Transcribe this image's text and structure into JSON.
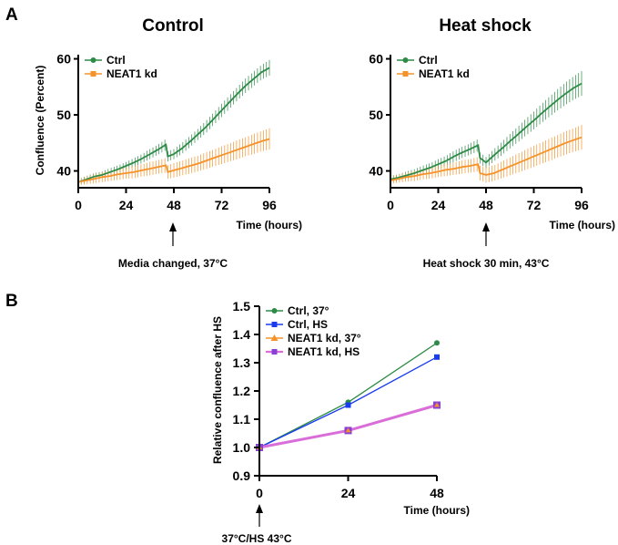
{
  "panels": {
    "a_label": "A",
    "b_label": "B"
  },
  "colors": {
    "ctrl": "#2e8b47",
    "neat1": "#f5922a",
    "ctrl_hs": "#1a3cf0",
    "neat1_hs": "#d96ed9",
    "neat1_hs_marker": "#8a3fd6",
    "axis": "#000000"
  },
  "chart_data": [
    {
      "type": "line",
      "title": "Control",
      "xlabel": "Time (hours)",
      "ylabel": "Confluence (Percent)",
      "xlim": [
        0,
        96
      ],
      "ylim": [
        37,
        60
      ],
      "xticks": [
        "0",
        "24",
        "48",
        "72",
        "96"
      ],
      "yticks": [
        "40",
        "50",
        "60"
      ],
      "legend_position": "top-left",
      "annotation": {
        "text": "Media changed, 37°C",
        "x": 48
      },
      "error_bars": true,
      "series": [
        {
          "name": "Ctrl",
          "x": [
            0,
            4,
            8,
            12,
            16,
            20,
            24,
            28,
            32,
            36,
            40,
            44,
            45,
            48,
            52,
            56,
            60,
            64,
            68,
            72,
            76,
            80,
            84,
            88,
            92,
            96
          ],
          "y": [
            38.0,
            38.5,
            39.0,
            39.3,
            39.8,
            40.3,
            40.9,
            41.5,
            42.2,
            43.0,
            43.8,
            44.7,
            42.6,
            43.0,
            44.0,
            45.2,
            46.5,
            47.8,
            49.3,
            50.8,
            52.3,
            53.8,
            55.2,
            56.4,
            57.6,
            58.4
          ],
          "err": [
            0.5,
            0.6,
            0.6,
            0.6,
            0.7,
            0.7,
            0.7,
            0.8,
            0.8,
            0.9,
            0.9,
            1.0,
            0.9,
            0.9,
            1.0,
            1.0,
            1.0,
            1.1,
            1.1,
            1.2,
            1.2,
            1.2,
            1.3,
            1.3,
            1.3,
            1.4
          ]
        },
        {
          "name": "NEAT1 kd",
          "x": [
            0,
            4,
            8,
            12,
            16,
            20,
            24,
            28,
            32,
            36,
            40,
            44,
            45,
            48,
            52,
            56,
            60,
            64,
            68,
            72,
            76,
            80,
            84,
            88,
            92,
            96
          ],
          "y": [
            38.0,
            38.3,
            38.6,
            38.9,
            39.1,
            39.4,
            39.6,
            39.8,
            40.1,
            40.4,
            40.7,
            41.0,
            39.8,
            40.1,
            40.5,
            40.9,
            41.3,
            41.8,
            42.3,
            42.8,
            43.3,
            43.8,
            44.3,
            44.8,
            45.3,
            45.7
          ],
          "err": [
            0.6,
            0.7,
            0.8,
            0.9,
            0.9,
            1.0,
            1.0,
            1.1,
            1.1,
            1.2,
            1.2,
            1.3,
            1.2,
            1.3,
            1.3,
            1.4,
            1.4,
            1.5,
            1.5,
            1.6,
            1.6,
            1.7,
            1.7,
            1.8,
            1.8,
            1.9
          ]
        }
      ]
    },
    {
      "type": "line",
      "title": "Heat shock",
      "xlabel": "Time (hours)",
      "ylabel": "",
      "xlim": [
        0,
        96
      ],
      "ylim": [
        37,
        60
      ],
      "xticks": [
        "0",
        "24",
        "48",
        "72",
        "96"
      ],
      "yticks": [
        "40",
        "50",
        "60"
      ],
      "legend_position": "top-left",
      "annotation": {
        "text": "Heat shock 30 min, 43°C",
        "x": 48
      },
      "error_bars": true,
      "series": [
        {
          "name": "Ctrl",
          "x": [
            0,
            4,
            8,
            12,
            16,
            20,
            24,
            28,
            32,
            36,
            40,
            44,
            45,
            48,
            52,
            56,
            60,
            64,
            68,
            72,
            76,
            80,
            84,
            88,
            92,
            96
          ],
          "y": [
            38.5,
            38.8,
            39.2,
            39.6,
            40.1,
            40.6,
            41.2,
            41.8,
            42.6,
            43.3,
            43.9,
            44.6,
            42.3,
            41.5,
            42.8,
            44.0,
            45.3,
            46.5,
            47.8,
            49.0,
            50.3,
            51.5,
            52.7,
            53.8,
            54.8,
            55.6
          ],
          "err": [
            0.6,
            0.6,
            0.7,
            0.7,
            0.8,
            0.8,
            0.9,
            0.9,
            1.0,
            1.0,
            1.0,
            1.1,
            1.0,
            1.0,
            1.1,
            1.2,
            1.3,
            1.4,
            1.5,
            1.6,
            1.7,
            1.8,
            1.9,
            2.0,
            2.1,
            2.2
          ]
        },
        {
          "name": "NEAT1 kd",
          "x": [
            0,
            4,
            8,
            12,
            16,
            20,
            24,
            28,
            32,
            36,
            40,
            44,
            45,
            48,
            52,
            56,
            60,
            64,
            68,
            72,
            76,
            80,
            84,
            88,
            92,
            96
          ],
          "y": [
            38.3,
            38.6,
            38.9,
            39.1,
            39.4,
            39.6,
            39.9,
            40.2,
            40.4,
            40.7,
            40.9,
            41.2,
            39.6,
            39.3,
            39.6,
            40.2,
            40.8,
            41.4,
            42.0,
            42.6,
            43.2,
            43.8,
            44.4,
            45.0,
            45.5,
            46.0
          ],
          "err": [
            0.6,
            0.7,
            0.8,
            0.9,
            0.9,
            1.0,
            1.0,
            1.1,
            1.1,
            1.2,
            1.2,
            1.3,
            1.3,
            1.4,
            1.4,
            1.5,
            1.6,
            1.7,
            1.8,
            1.9,
            1.9,
            2.0,
            2.0,
            2.1,
            2.1,
            2.2
          ]
        }
      ]
    },
    {
      "type": "line",
      "title": "",
      "xlabel": "Time (hours)",
      "ylabel": "Relative confluence after HS",
      "xlim": [
        0,
        48
      ],
      "ylim": [
        0.9,
        1.5
      ],
      "xticks": [
        "0",
        "24",
        "48"
      ],
      "yticks": [
        "0.9",
        "1.0",
        "1.1",
        "1.2",
        "1.3",
        "1.4",
        "1.5"
      ],
      "legend_position": "top-left",
      "annotation": {
        "text": "37°C/HS 43°C",
        "x": 0
      },
      "categories": [
        0,
        24,
        48
      ],
      "series": [
        {
          "name": "Ctrl, 37°",
          "values": [
            1.0,
            1.16,
            1.37
          ],
          "marker": "circle"
        },
        {
          "name": "Ctrl, HS",
          "values": [
            1.0,
            1.15,
            1.32
          ],
          "marker": "square"
        },
        {
          "name": "NEAT1 kd, 37°",
          "values": [
            1.0,
            1.06,
            1.15
          ],
          "marker": "triangle"
        },
        {
          "name": "NEAT1 kd, HS",
          "values": [
            1.0,
            1.06,
            1.15
          ],
          "marker": "square"
        }
      ]
    }
  ]
}
